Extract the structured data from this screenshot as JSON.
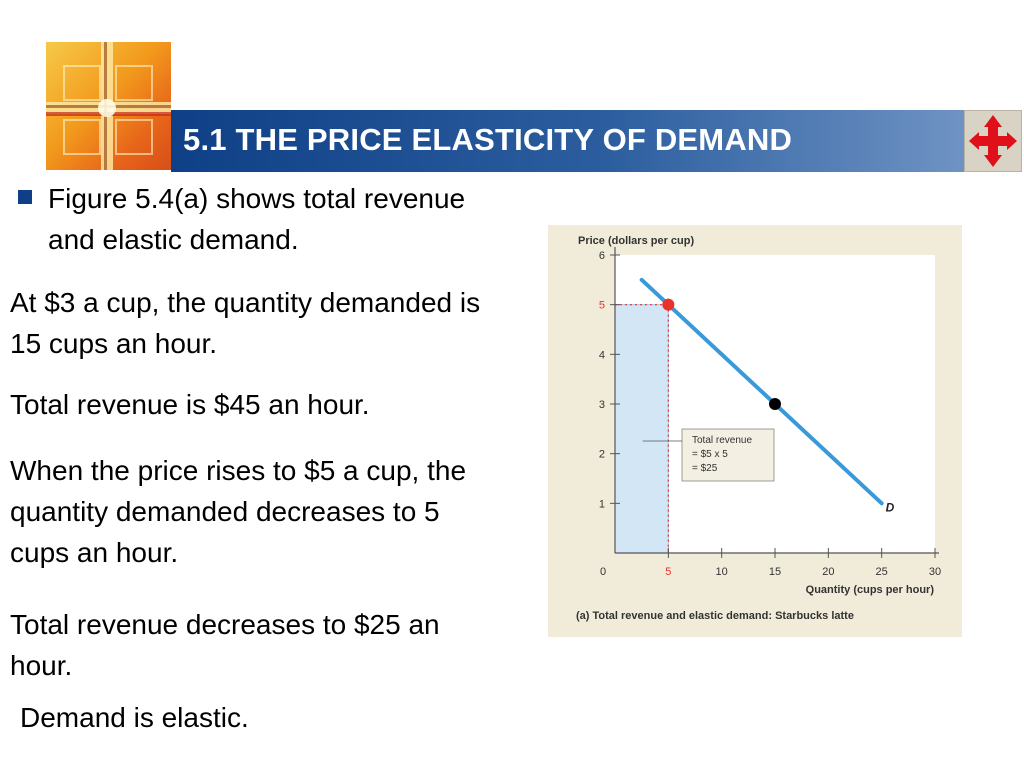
{
  "header": {
    "title": "5.1 THE PRICE ELASTICITY OF DEMAND",
    "logo_icon": "cross-window-logo",
    "nav_icon": "four-arrow-navigation-icon",
    "colors": {
      "title_bar": "#1d4f93",
      "bullet": "#0f3f86",
      "accent": "#e0101a"
    }
  },
  "content": {
    "bullet_text": "Figure 5.4(a) shows total revenue and elastic demand.",
    "para1": "At $3 a cup, the quantity demanded is 15 cups an hour.",
    "para2": "Total revenue is $45 an hour.",
    "para3": "When the price rises to $5 a cup, the quantity demanded decreases to 5 cups an hour.",
    "para4": "Total revenue decreases to $25 an hour.",
    "para5": "Demand is elastic."
  },
  "chart_data": {
    "type": "line",
    "ylabel": "Price (dollars per cup)",
    "xlabel": "Quantity (cups per hour)",
    "caption": "(a) Total revenue and elastic demand: Starbucks latte",
    "x_ticks": [
      "0",
      "5",
      "10",
      "15",
      "20",
      "25",
      "30"
    ],
    "y_ticks": [
      "1",
      "2",
      "3",
      "4",
      "5",
      "6"
    ],
    "xlim": [
      0,
      30
    ],
    "ylim": [
      0,
      6
    ],
    "series": [
      {
        "name": "D",
        "x": [
          2.5,
          25
        ],
        "y": [
          5.5,
          1
        ]
      }
    ],
    "points": [
      {
        "x": 5,
        "y": 5,
        "color": "#e8322b"
      },
      {
        "x": 15,
        "y": 3,
        "color": "#000000"
      }
    ],
    "highlight_x": 5,
    "highlight_y": 5,
    "annotation": [
      "Total revenue",
      "= $5 x 5",
      "= $25"
    ],
    "colors": {
      "line": "#3a9ad9",
      "revenue_fill": "#d2e6f6",
      "highlight": "#e8322b",
      "plot_bg": "#ffffff"
    }
  }
}
